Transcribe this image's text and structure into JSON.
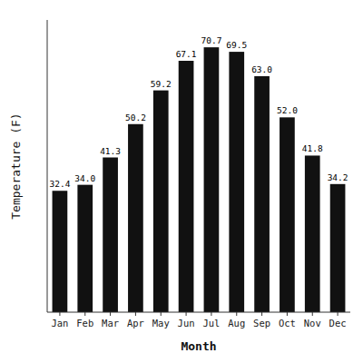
{
  "chart_data": {
    "type": "bar",
    "categories": [
      "Jan",
      "Feb",
      "Mar",
      "Apr",
      "May",
      "Jun",
      "Jul",
      "Aug",
      "Sep",
      "Oct",
      "Nov",
      "Dec"
    ],
    "values": [
      32.4,
      34.0,
      41.3,
      50.2,
      59.2,
      67.1,
      70.7,
      69.5,
      63.0,
      52.0,
      41.8,
      34.2
    ],
    "value_labels": [
      "32.4",
      "34.0",
      "41.3",
      "50.2",
      "59.2",
      "67.1",
      "70.7",
      "69.5",
      "63.0",
      "52.0",
      "41.8",
      "34.2"
    ],
    "color": "#111111",
    "xlabel": "Month",
    "ylabel": "Temperature (F)",
    "ylim": [
      0,
      78
    ],
    "data_labels": true,
    "tick_labels": "x"
  }
}
